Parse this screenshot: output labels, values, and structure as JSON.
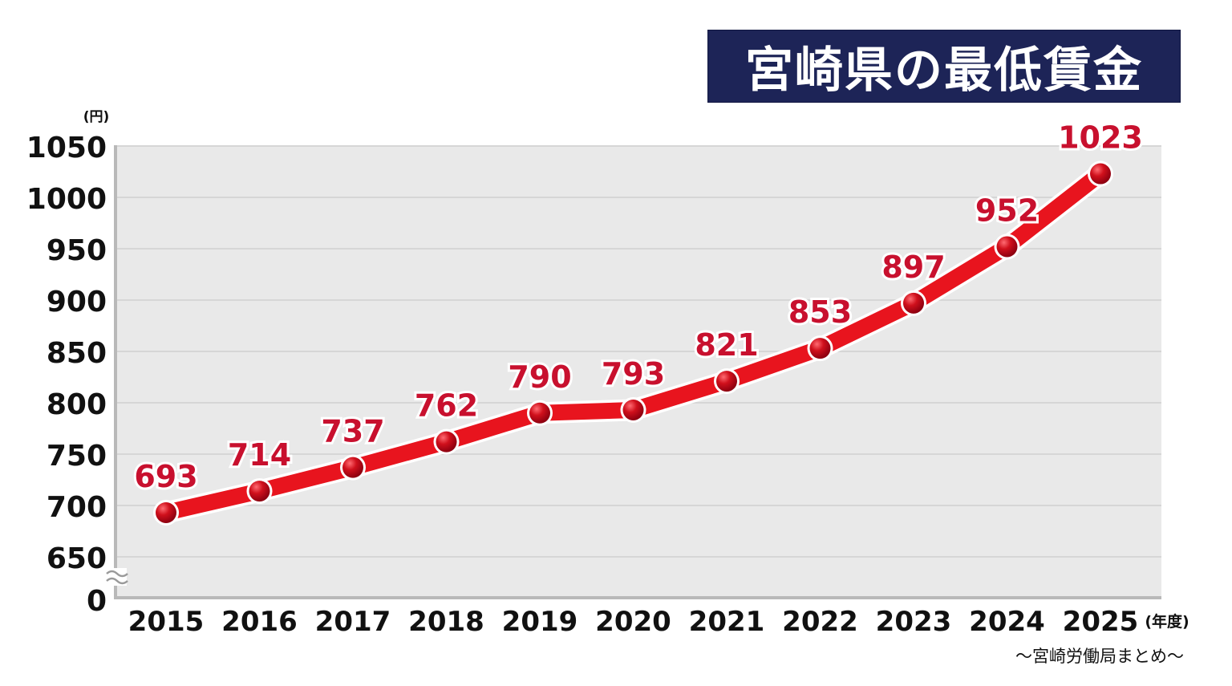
{
  "title": "宮崎県の最低賃金",
  "source_note": "〜宮崎労働局まとめ〜",
  "colors": {
    "title_bg": "#1d2457",
    "line": "#e8141e",
    "marker": "#c8102e",
    "label": "#c8102e",
    "plot_bg": "#e9e9e9",
    "grid": "#d7d7d7"
  },
  "chart_data": {
    "type": "line",
    "title": "宮崎県の最低賃金",
    "y_unit_label": "(円)",
    "x_unit_label": "(年度)",
    "x": [
      "2015",
      "2016",
      "2017",
      "2018",
      "2019",
      "2020",
      "2021",
      "2022",
      "2023",
      "2024",
      "2025"
    ],
    "series": [
      {
        "values": [
          693,
          714,
          737,
          762,
          790,
          793,
          821,
          853,
          897,
          952,
          1023
        ]
      }
    ],
    "y_ticks": [
      "0",
      "650",
      "700",
      "750",
      "800",
      "850",
      "900",
      "950",
      "1000",
      "1050"
    ],
    "ylim": [
      650,
      1050
    ],
    "axis_break": true,
    "grid": true,
    "data_labels": true
  }
}
